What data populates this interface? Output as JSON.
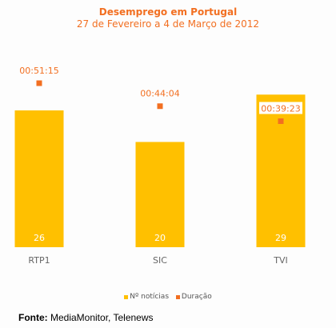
{
  "colors": {
    "bar": "#FFC000",
    "point": "#F26F21",
    "title": "#F26F21",
    "axis_text": "#666666",
    "bar_label": "#FFFFFF"
  },
  "chart_data": {
    "type": "bar",
    "title": "Desemprego em Portugal",
    "subtitle": "27 de Fevereiro a 4 de Março de 2012",
    "categories": [
      "RTP1",
      "SIC",
      "TVI"
    ],
    "series": [
      {
        "name": "Nº notícias",
        "type": "bar",
        "values": [
          26,
          20,
          29
        ]
      },
      {
        "name": "Duração",
        "type": "scatter",
        "values": [
          "00:51:15",
          "00:44:04",
          "00:39:23"
        ],
        "seconds": [
          3075,
          2644,
          2363
        ]
      }
    ],
    "legend_position": "bottom",
    "grid": false
  },
  "footer": {
    "label": "Fonte:",
    "text": " MediaMonitor, Telenews"
  }
}
